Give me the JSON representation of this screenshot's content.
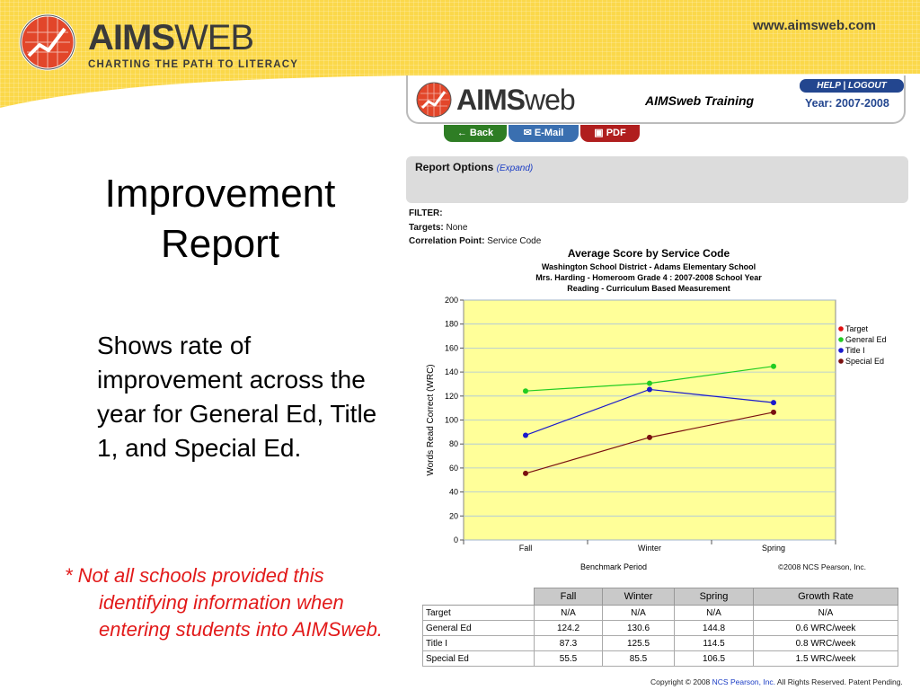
{
  "banner": {
    "brand_bold": "AIMS",
    "brand_light": "WEB",
    "tagline": "CHARTING THE PATH TO LITERACY",
    "url": "www.aimsweb.com"
  },
  "slide": {
    "title_line1": "Improvement",
    "title_line2": "Report",
    "body": "Shows rate of improvement across the year for General Ed, Title 1, and Special Ed.",
    "note": "* Not all schools provided this identifying information when entering students into AIMSweb."
  },
  "app": {
    "brand_bold": "AIMS",
    "brand_light": "web",
    "title": "AIMSweb Training",
    "help": "HELP",
    "logout": "LOGOUT",
    "separator": "|",
    "year": "Year: 2007-2008",
    "back_label": "← Back",
    "email_label": "✉ E-Mail",
    "pdf_label": "PDF",
    "report_options": "Report Options",
    "expand": "(Expand)",
    "filter_label": "FILTER:",
    "targets_label": "Targets:",
    "targets_value": "None",
    "corr_label": "Correlation Point:",
    "corr_value": "Service Code"
  },
  "chart_data": {
    "type": "line",
    "title": "Average Score by Service Code",
    "subtitle": [
      "Washington School District - Adams Elementary School",
      "Mrs. Harding - Homeroom  Grade 4 : 2007-2008 School Year",
      "Reading - Curriculum Based Measurement"
    ],
    "xlabel": "Benchmark Period",
    "ylabel": "Words Read Correct (WRC)",
    "categories": [
      "Fall",
      "Winter",
      "Spring"
    ],
    "ylim": [
      0,
      200
    ],
    "yticks": [
      0,
      20,
      40,
      60,
      80,
      100,
      120,
      140,
      160,
      180,
      200
    ],
    "grid": true,
    "legend": "right",
    "series": [
      {
        "name": "Target",
        "color": "#e01010",
        "values": [
          null,
          null,
          null
        ]
      },
      {
        "name": "General Ed",
        "color": "#22cc22",
        "values": [
          124.2,
          130.6,
          144.8
        ]
      },
      {
        "name": "Title I",
        "color": "#1a1acc",
        "values": [
          87.3,
          125.5,
          114.5
        ]
      },
      {
        "name": "Special Ed",
        "color": "#7a1010",
        "values": [
          55.5,
          85.5,
          106.5
        ]
      }
    ],
    "copyright": "©2008 NCS Pearson, Inc."
  },
  "table": {
    "headers": [
      "Fall",
      "Winter",
      "Spring",
      "Growth Rate"
    ],
    "rows": [
      {
        "label": "Target",
        "cells": [
          "N/A",
          "N/A",
          "N/A",
          "N/A"
        ]
      },
      {
        "label": "General Ed",
        "cells": [
          "124.2",
          "130.6",
          "144.8",
          "0.6  WRC/week"
        ]
      },
      {
        "label": "Title I",
        "cells": [
          "87.3",
          "125.5",
          "114.5",
          "0.8  WRC/week"
        ]
      },
      {
        "label": "Special Ed",
        "cells": [
          "55.5",
          "85.5",
          "106.5",
          "1.5  WRC/week"
        ]
      }
    ]
  },
  "footer": {
    "prefix": "Copyright © 2008 ",
    "link": "NCS Pearson, Inc.",
    "suffix": " All Rights Reserved. Patent Pending."
  }
}
